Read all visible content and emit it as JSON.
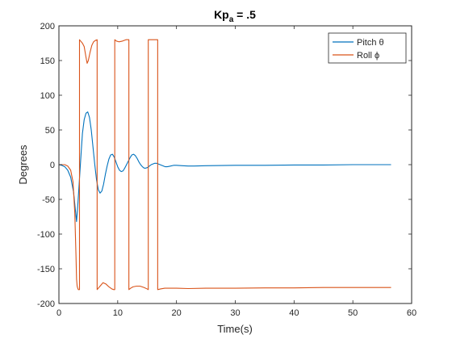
{
  "chart_data": {
    "type": "line",
    "title_main": "Kp",
    "title_sub": "a",
    "title_rest": " = .5",
    "xlabel": "Time(s)",
    "ylabel": "Degrees",
    "xlim": [
      0,
      60
    ],
    "ylim": [
      -200,
      200
    ],
    "xticks": [
      0,
      10,
      20,
      30,
      40,
      50,
      60
    ],
    "yticks": [
      -200,
      -150,
      -100,
      -50,
      0,
      50,
      100,
      150,
      200
    ],
    "grid": false,
    "legend_position": "top-right",
    "series": [
      {
        "name": "Pitch θ",
        "color": "#0072BD",
        "x": [
          0,
          0.5,
          1,
          1.5,
          2,
          2.5,
          2.8,
          3,
          3.2,
          3.5,
          3.8,
          4,
          4.3,
          4.6,
          4.9,
          5.2,
          5.5,
          5.8,
          6.1,
          6.4,
          6.7,
          7,
          7.3,
          7.6,
          7.9,
          8.2,
          8.5,
          8.8,
          9.1,
          9.4,
          9.7,
          10,
          10.3,
          10.6,
          10.9,
          11.2,
          11.5,
          11.8,
          12.1,
          12.4,
          12.7,
          13,
          13.3,
          13.6,
          13.9,
          14.2,
          14.5,
          14.8,
          15.1,
          15.4,
          15.7,
          16,
          16.3,
          16.6,
          16.9,
          17.2,
          17.5,
          17.8,
          18.1,
          18.4,
          18.7,
          19,
          19.5,
          20,
          21,
          22,
          23,
          25,
          30,
          35,
          40,
          45,
          50,
          56.5
        ],
        "y": [
          0,
          -1,
          -3,
          -8,
          -18,
          -40,
          -65,
          -82,
          -60,
          -20,
          20,
          45,
          65,
          74,
          76,
          68,
          50,
          25,
          0,
          -22,
          -36,
          -41,
          -38,
          -28,
          -14,
          -2,
          8,
          14,
          15,
          11,
          4,
          -3,
          -8,
          -10,
          -9,
          -5,
          0,
          5,
          10,
          14,
          15,
          13,
          9,
          4,
          0,
          -3,
          -5,
          -5,
          -4,
          -2,
          0,
          1,
          2,
          2,
          1,
          0,
          -1,
          -2,
          -3,
          -3,
          -2.5,
          -2,
          -1,
          -1,
          -1.5,
          -2,
          -2,
          -1.5,
          -1,
          -1,
          -0.5,
          -0.5,
          0,
          0
        ]
      },
      {
        "name": "Roll ϕ",
        "color": "#D95319",
        "x": [
          0,
          1,
          1.5,
          2,
          2.4,
          2.7,
          2.9,
          3.0,
          3.1,
          3.2,
          3.3,
          3.5,
          3.5,
          3.7,
          4.0,
          4.3,
          4.6,
          4.8,
          5.0,
          5.3,
          5.6,
          5.9,
          6.2,
          6.5,
          6.5,
          6.7,
          7.0,
          7.5,
          8.0,
          8.5,
          9.0,
          9.3,
          9.5,
          9.5,
          9.8,
          10.2,
          10.8,
          11.4,
          11.9,
          11.9,
          12.2,
          12.6,
          13.2,
          13.8,
          14.5,
          15.0,
          15.2,
          15.2,
          15.6,
          16.2,
          16.8,
          16.8,
          17.3,
          18,
          20,
          22,
          25,
          30,
          35,
          40,
          45,
          50,
          56.5
        ],
        "y": [
          0,
          0,
          -2,
          -8,
          -25,
          -70,
          -130,
          -165,
          -175,
          -178,
          -180,
          -180,
          180,
          178,
          175,
          170,
          155,
          146,
          150,
          162,
          172,
          177,
          179,
          180,
          -180,
          -178,
          -175,
          -170,
          -172,
          -176,
          -179,
          -180,
          -180,
          180,
          178,
          177,
          178,
          180,
          180,
          -180,
          -178,
          -176,
          -175,
          -175,
          -177,
          -179,
          -180,
          180,
          180,
          180,
          180,
          -180,
          -179,
          -178,
          -178,
          -178.5,
          -178,
          -178,
          -177.5,
          -177.5,
          -177,
          -177,
          -177
        ]
      }
    ]
  }
}
